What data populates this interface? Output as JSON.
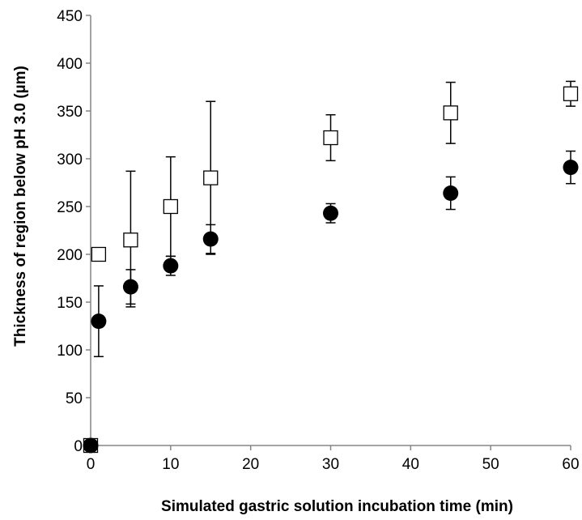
{
  "chart_data": {
    "type": "scatter",
    "title": "",
    "xlabel": "Simulated gastric solution incubation time (min)",
    "ylabel": "Thickness of region below pH 3.0 (µm)",
    "xlim": [
      0,
      60
    ],
    "ylim": [
      0,
      450
    ],
    "x_ticks": [
      0,
      10,
      20,
      30,
      40,
      50,
      60
    ],
    "y_ticks": [
      0,
      50,
      100,
      150,
      200,
      250,
      300,
      350,
      400,
      450
    ],
    "grid": false,
    "legend": "none",
    "series": [
      {
        "marker": "open-square",
        "color": "#000000",
        "x": [
          0,
          1,
          5,
          10,
          15,
          30,
          45,
          60
        ],
        "y": [
          0,
          200,
          215,
          250,
          280,
          322,
          348,
          368
        ],
        "err_upper": [
          0,
          0,
          72,
          52,
          80,
          24,
          32,
          13
        ],
        "err_lower": [
          0,
          0,
          70,
          52,
          80,
          24,
          32,
          13
        ]
      },
      {
        "marker": "filled-circle",
        "color": "#000000",
        "x": [
          0,
          1,
          5,
          10,
          15,
          30,
          45,
          60
        ],
        "y": [
          0,
          130,
          166,
          188,
          216,
          243,
          264,
          291
        ],
        "err_upper": [
          0,
          37,
          18,
          10,
          15,
          10,
          17,
          17
        ],
        "err_lower": [
          0,
          37,
          18,
          10,
          15,
          10,
          17,
          17
        ]
      }
    ]
  }
}
